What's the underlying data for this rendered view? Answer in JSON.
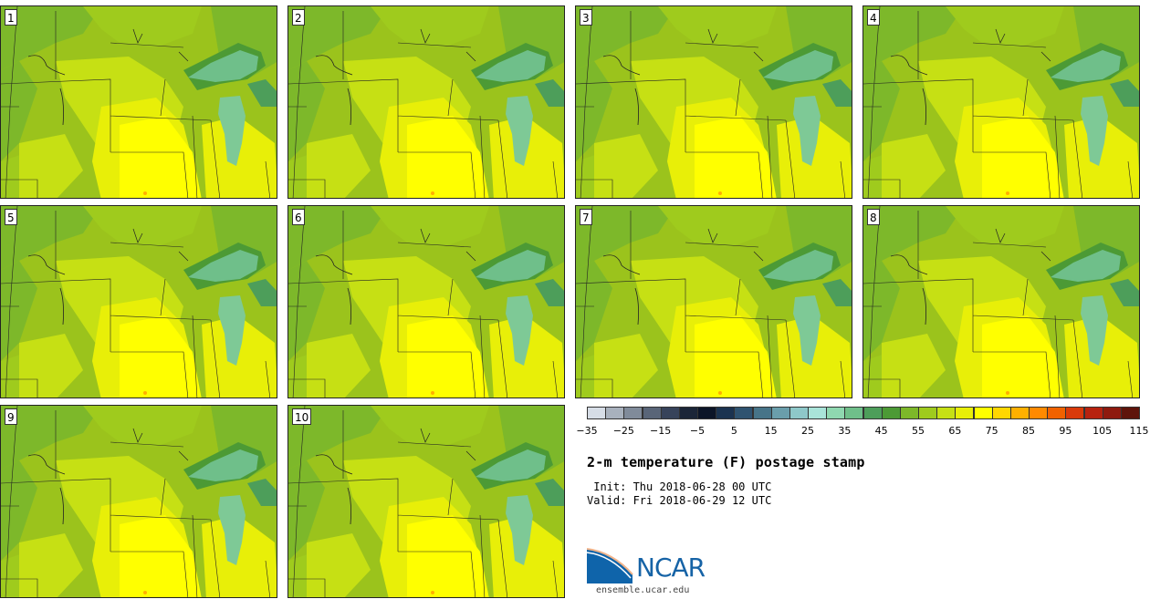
{
  "figure": {
    "title": "2-m temperature (F) postage stamp",
    "init_line": " Init: Thu 2018-06-28 00 UTC",
    "valid_line": "Valid: Fri 2018-06-29 12 UTC"
  },
  "members": [
    "1",
    "2",
    "3",
    "4",
    "5",
    "6",
    "7",
    "8",
    "9",
    "10"
  ],
  "colorbar": {
    "tick_labels": [
      "−35",
      "−25",
      "−15",
      "−5",
      "5",
      "15",
      "25",
      "35",
      "45",
      "55",
      "65",
      "75",
      "85",
      "95",
      "105",
      "115"
    ],
    "colors": [
      "#d6dde6",
      "#a8b1bd",
      "#808b9a",
      "#596578",
      "#37435a",
      "#1b2538",
      "#0c1528",
      "#1b3350",
      "#2f5370",
      "#477488",
      "#6a9eab",
      "#8ec8c9",
      "#a9e4d9",
      "#8fd8b0",
      "#6fbf8a",
      "#4d9e5a",
      "#4c9a35",
      "#7db82a",
      "#9fcb1d",
      "#c6e014",
      "#e8ef08",
      "#ffff00",
      "#ffd700",
      "#ffb000",
      "#ff8a00",
      "#f06200",
      "#d93a0a",
      "#b7220f",
      "#8e1a0e",
      "#5e140b"
    ]
  },
  "branding": {
    "logo_text": "NCAR",
    "website": "ensemble.ucar.edu"
  }
}
